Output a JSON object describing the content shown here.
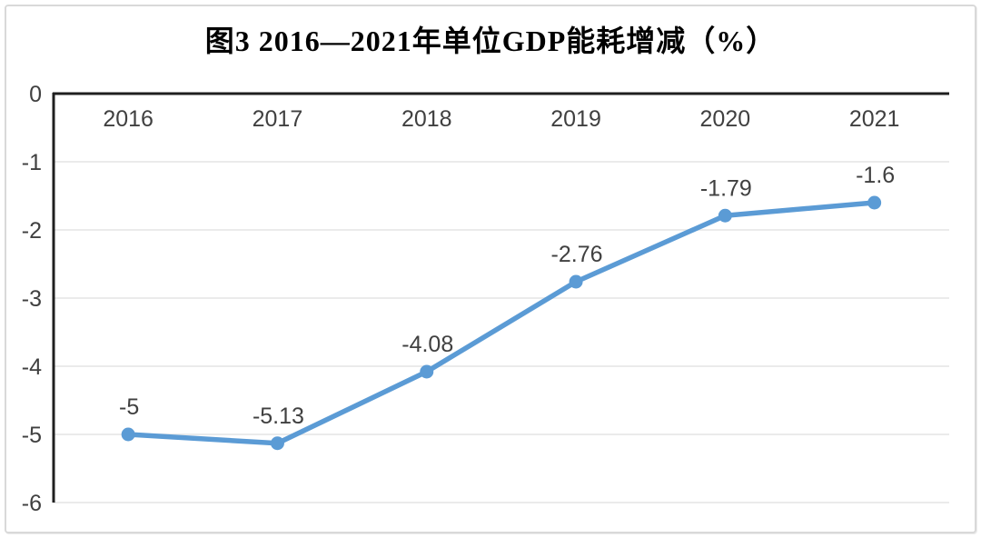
{
  "colors": {
    "line": "#5B9BD5",
    "marker": "#5B9BD5",
    "grid": "#EBEBEB",
    "axis": "#1F1F1F",
    "text": "#404040",
    "frame_border": "#D9D9D9",
    "background": "#FFFFFF"
  },
  "chart_data": {
    "type": "line",
    "title": "图3 2016—2021年单位GDP能耗增减（%）",
    "categories": [
      "2016",
      "2017",
      "2018",
      "2019",
      "2020",
      "2021"
    ],
    "series": [
      {
        "values": [
          -5,
          -5.13,
          -4.08,
          -2.76,
          -1.79,
          -1.6
        ],
        "data_labels": [
          "-5",
          "-5.13",
          "-4.08",
          "-2.76",
          "-1.79",
          "-1.6"
        ]
      }
    ],
    "y_ticks": [
      "0",
      "-1",
      "-2",
      "-3",
      "-4",
      "-5",
      "-6"
    ],
    "ylim": [
      -6,
      0
    ],
    "xlabel": "",
    "ylabel": "",
    "grid": true,
    "legend_position": "none",
    "x_labels_position": "top_inside"
  }
}
